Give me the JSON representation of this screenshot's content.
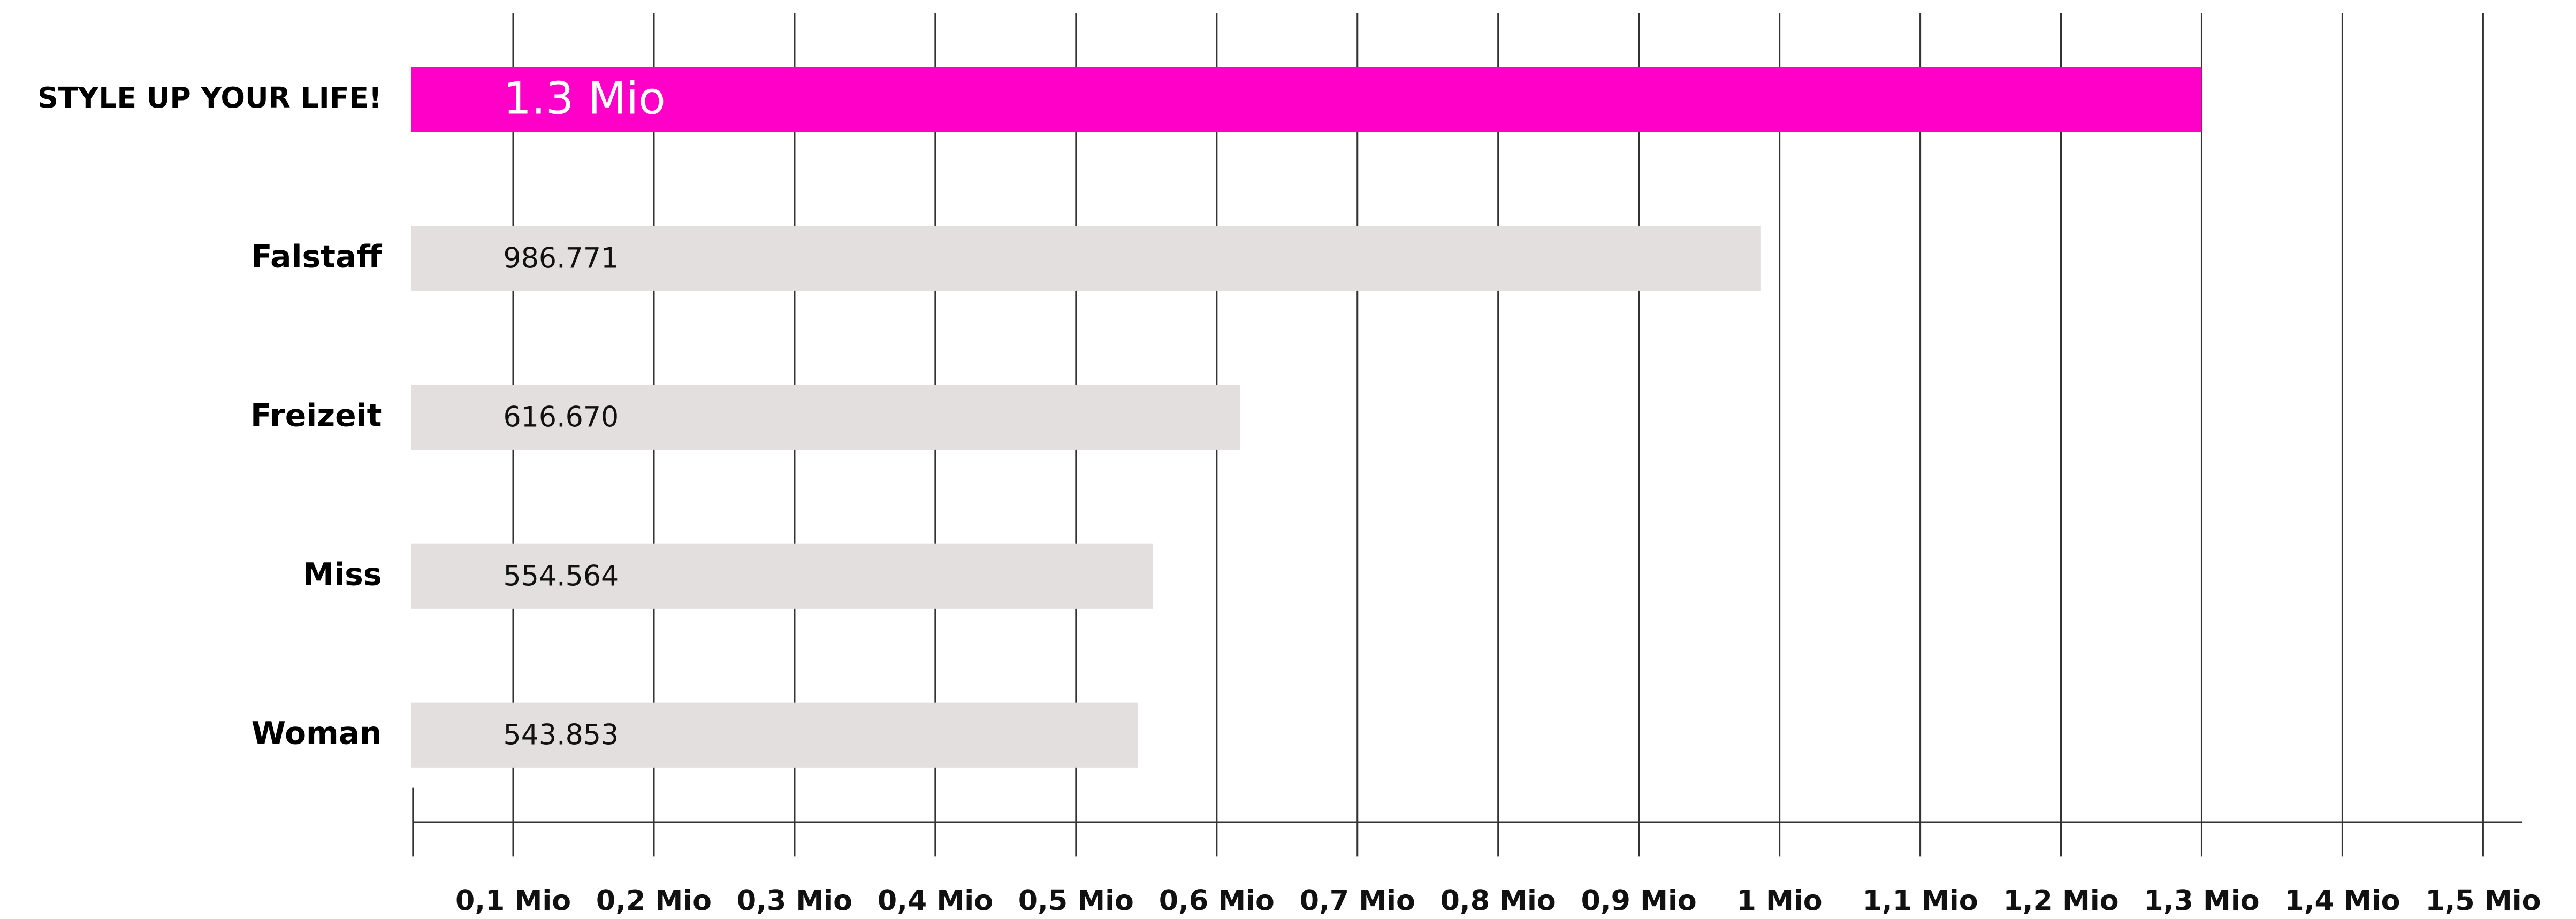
{
  "chart_data": {
    "type": "bar",
    "orientation": "horizontal",
    "categories": [
      "STYLE UP YOUR LIFE!",
      "Falstaff",
      "Freizeit",
      "Miss",
      "Woman"
    ],
    "values": [
      1300000,
      986771,
      616670,
      554564,
      543853
    ],
    "value_labels": [
      "1.3 Mio",
      "986.771",
      "616.670",
      "554.564",
      "543.853"
    ],
    "colors": [
      "#ff00c8",
      "#e2dfde",
      "#e2dfde",
      "#e2dfde",
      "#e2dfde"
    ],
    "label_colors": [
      "#ffffff",
      "#111111",
      "#111111",
      "#111111",
      "#111111"
    ],
    "xlim": [
      0,
      1500000
    ],
    "xticks": [
      {
        "value": 100000,
        "label": "0,1 Mio"
      },
      {
        "value": 200000,
        "label": "0,2 Mio"
      },
      {
        "value": 300000,
        "label": "0,3 Mio"
      },
      {
        "value": 400000,
        "label": "0,4 Mio"
      },
      {
        "value": 500000,
        "label": "0,5 Mio"
      },
      {
        "value": 600000,
        "label": "0,6 Mio"
      },
      {
        "value": 700000,
        "label": "0,7 Mio"
      },
      {
        "value": 800000,
        "label": "0,8 Mio"
      },
      {
        "value": 900000,
        "label": "0,9 Mio"
      },
      {
        "value": 1000000,
        "label": "1 Mio"
      },
      {
        "value": 1100000,
        "label": "1,1 Mio"
      },
      {
        "value": 1200000,
        "label": "1,2 Mio"
      },
      {
        "value": 1300000,
        "label": "1,3 Mio"
      },
      {
        "value": 1400000,
        "label": "1,4 Mio"
      },
      {
        "value": 1500000,
        "label": "1,5 Mio"
      }
    ],
    "grid": true
  }
}
